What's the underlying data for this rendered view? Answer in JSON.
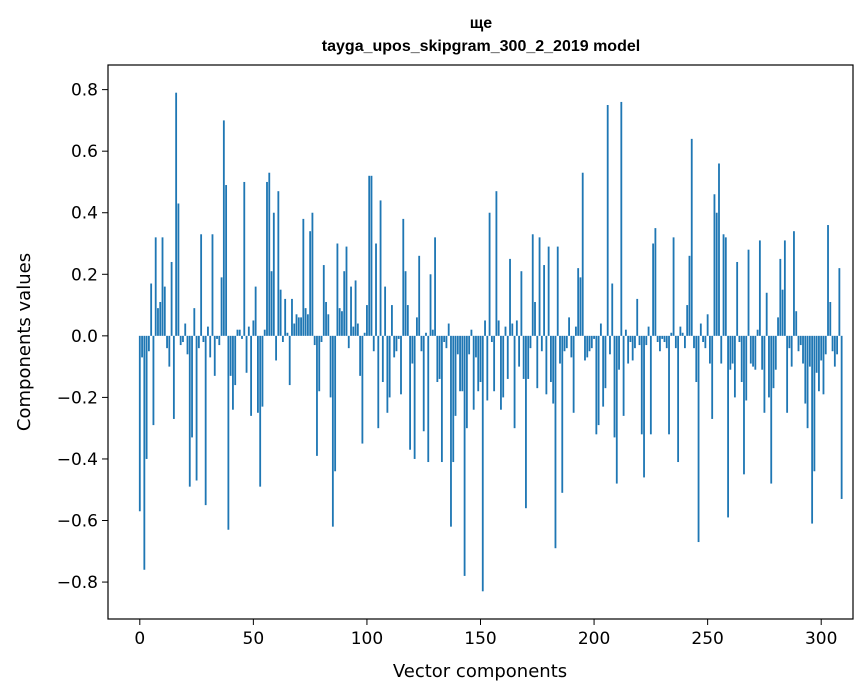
{
  "chart_data": {
    "type": "bar",
    "title": "ще",
    "subtitle": "tayga_upos_skipgram_300_2_2019 model",
    "xlabel": "Vector components",
    "ylabel": "Components values",
    "xlim": [
      -14,
      314
    ],
    "ylim": [
      -0.92,
      0.88
    ],
    "xticks": [
      0,
      50,
      100,
      150,
      200,
      250,
      300
    ],
    "yticks": [
      -0.8,
      -0.6,
      -0.4,
      -0.2,
      0.0,
      0.2,
      0.4,
      0.6,
      0.8
    ],
    "ytick_labels": [
      "−0.8",
      "−0.6",
      "−0.4",
      "−0.2",
      "0.0",
      "0.2",
      "0.4",
      "0.6",
      "0.8"
    ],
    "grid": false,
    "bar_color": "#1f77b4",
    "values": [
      -0.57,
      -0.07,
      -0.76,
      -0.4,
      -0.05,
      0.17,
      -0.29,
      0.32,
      0.09,
      0.11,
      0.32,
      0.16,
      -0.04,
      -0.1,
      0.24,
      -0.27,
      0.79,
      0.43,
      -0.03,
      -0.02,
      0.04,
      -0.06,
      -0.49,
      -0.33,
      0.09,
      -0.47,
      -0.04,
      0.33,
      -0.02,
      -0.55,
      0.03,
      -0.07,
      0.33,
      -0.13,
      -0.01,
      -0.03,
      0.19,
      0.7,
      0.49,
      -0.63,
      -0.13,
      -0.24,
      -0.16,
      0.02,
      0.02,
      -0.01,
      0.5,
      -0.12,
      0.03,
      -0.26,
      0.05,
      0.16,
      -0.25,
      -0.49,
      -0.23,
      0.02,
      0.5,
      0.53,
      0.21,
      0.4,
      -0.08,
      0.47,
      0.15,
      -0.02,
      0.12,
      0.01,
      -0.16,
      0.12,
      0.04,
      0.07,
      0.06,
      0.06,
      0.38,
      0.09,
      0.07,
      0.34,
      0.4,
      -0.03,
      -0.39,
      -0.18,
      -0.02,
      0.23,
      0.11,
      0.07,
      -0.2,
      -0.62,
      -0.44,
      0.3,
      0.09,
      0.08,
      0.21,
      0.29,
      -0.04,
      0.16,
      0.03,
      0.18,
      0.04,
      -0.13,
      -0.35,
      0.01,
      0.1,
      0.52,
      0.52,
      -0.05,
      0.3,
      -0.3,
      0.44,
      -0.15,
      0.16,
      -0.25,
      -0.2,
      0.1,
      -0.07,
      -0.05,
      -0.01,
      -0.19,
      0.38,
      0.21,
      0.1,
      -0.37,
      -0.09,
      -0.4,
      0.06,
      0.26,
      -0.05,
      -0.31,
      0.01,
      -0.41,
      0.2,
      0.02,
      0.32,
      -0.15,
      -0.14,
      -0.41,
      -0.02,
      -0.04,
      0.04,
      -0.62,
      -0.41,
      -0.26,
      -0.06,
      -0.18,
      -0.18,
      -0.78,
      -0.3,
      -0.06,
      0.02,
      -0.24,
      -0.07,
      -0.18,
      -0.15,
      -0.83,
      0.05,
      -0.21,
      0.4,
      -0.02,
      -0.18,
      0.47,
      0.05,
      -0.24,
      -0.2,
      0.03,
      -0.14,
      0.25,
      0.04,
      -0.3,
      0.05,
      -0.1,
      0.21,
      -0.14,
      -0.56,
      -0.14,
      -0.04,
      0.33,
      0.11,
      -0.17,
      0.32,
      -0.05,
      0.23,
      -0.19,
      0.29,
      -0.15,
      -0.22,
      -0.69,
      0.29,
      -0.09,
      -0.51,
      -0.05,
      -0.04,
      0.06,
      -0.07,
      -0.25,
      0.03,
      0.22,
      0.19,
      0.53,
      -0.08,
      -0.07,
      -0.05,
      -0.04,
      -0.01,
      -0.32,
      -0.29,
      0.04,
      -0.23,
      -0.17,
      0.75,
      -0.06,
      0.17,
      -0.33,
      -0.48,
      -0.11,
      0.76,
      -0.26,
      0.02,
      -0.09,
      -0.02,
      -0.08,
      -0.04,
      0.12,
      -0.03,
      -0.32,
      -0.46,
      -0.03,
      0.03,
      -0.32,
      0.3,
      0.35,
      -0.02,
      -0.05,
      -0.01,
      -0.02,
      -0.04,
      -0.32,
      0.01,
      0.32,
      -0.04,
      -0.41,
      0.03,
      0.01,
      -0.04,
      0.1,
      0.26,
      0.64,
      -0.04,
      -0.15,
      -0.67,
      0.04,
      -0.02,
      -0.04,
      0.07,
      -0.09,
      -0.27,
      0.46,
      0.4,
      0.56,
      -0.09,
      0.33,
      0.32,
      -0.59,
      -0.11,
      -0.09,
      -0.2,
      0.24,
      -0.02,
      -0.15,
      -0.45,
      -0.21,
      0.28,
      -0.09,
      -0.1,
      -0.11,
      0.02,
      0.31,
      -0.11,
      -0.25,
      0.14,
      -0.2,
      -0.48,
      -0.17,
      -0.11,
      0.06,
      0.25,
      0.15,
      0.31,
      -0.25,
      -0.04,
      -0.1,
      0.34,
      0.08,
      -0.05,
      -0.03,
      -0.09,
      -0.22,
      -0.3,
      -0.1,
      -0.61,
      -0.44,
      -0.12,
      -0.18,
      -0.08,
      -0.19,
      -0.06,
      0.36,
      0.11,
      -0.05,
      -0.1,
      -0.06,
      0.22,
      -0.53
    ]
  }
}
